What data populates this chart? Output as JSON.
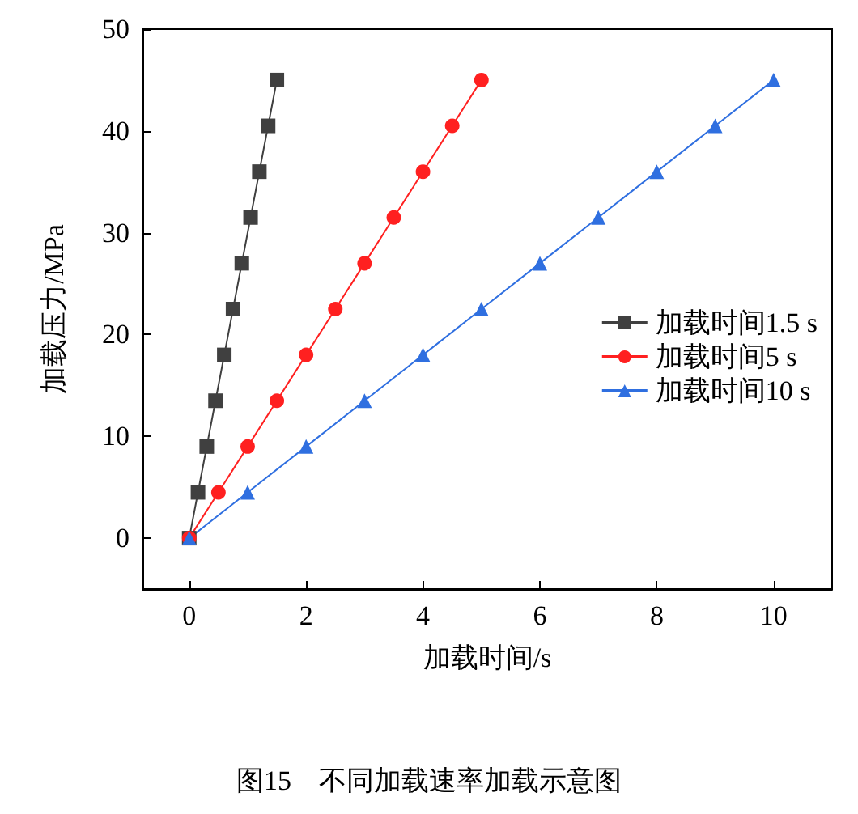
{
  "chart_data": {
    "type": "line",
    "xlabel": "加载时间/s",
    "ylabel": "加载压力/MPa",
    "annotations": [
      "图15　不同加载速率加载示意图"
    ],
    "xlim": [
      -0.8,
      11
    ],
    "ylim": [
      -5,
      50
    ],
    "xticks": [
      0,
      2,
      4,
      6,
      8,
      10
    ],
    "yticks": [
      0,
      10,
      20,
      30,
      40,
      50
    ],
    "legend": "right",
    "grid": false,
    "series": [
      {
        "name": "加载时间1.5 s",
        "color": "#404040",
        "marker": "square",
        "x": [
          0,
          0.15,
          0.3,
          0.45,
          0.6,
          0.75,
          0.9,
          1.05,
          1.2,
          1.35,
          1.5
        ],
        "values": [
          0,
          4.5,
          9,
          13.5,
          18,
          22.5,
          27,
          31.5,
          36,
          40.5,
          45
        ]
      },
      {
        "name": "加载时间5 s",
        "color": "#ff2020",
        "marker": "circle",
        "x": [
          0,
          0.5,
          1,
          1.5,
          2,
          2.5,
          3,
          3.5,
          4,
          4.5,
          5
        ],
        "values": [
          0,
          4.5,
          9,
          13.5,
          18,
          22.5,
          27,
          31.5,
          36,
          40.5,
          45
        ]
      },
      {
        "name": "加载时间10 s",
        "color": "#2f6fe0",
        "marker": "triangle",
        "x": [
          0,
          1,
          2,
          3,
          4,
          5,
          6,
          7,
          8,
          9,
          10
        ],
        "values": [
          0,
          4.5,
          9,
          13.5,
          18,
          22.5,
          27,
          31.5,
          36,
          40.5,
          45
        ]
      }
    ]
  }
}
